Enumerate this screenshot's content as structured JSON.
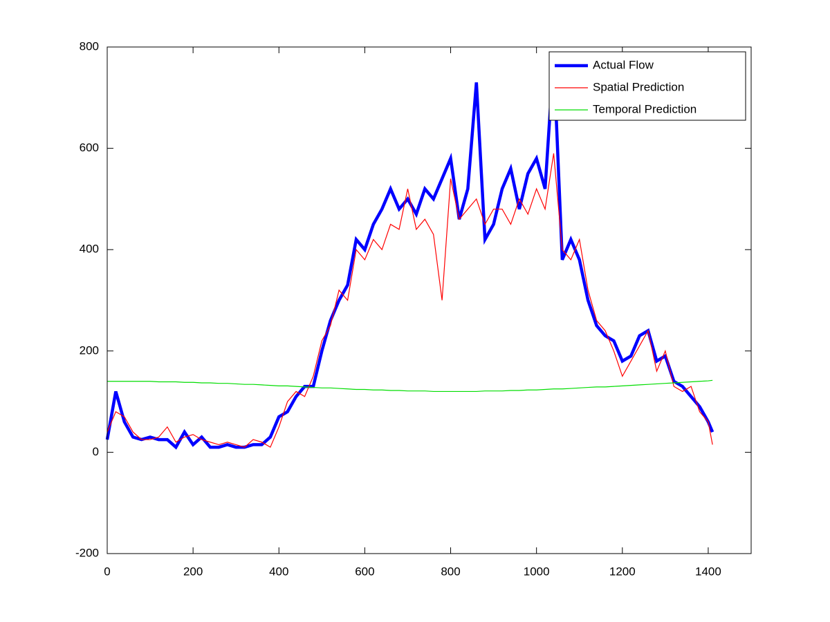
{
  "chart_data": {
    "type": "line",
    "x": [
      0,
      20,
      40,
      60,
      80,
      100,
      120,
      140,
      160,
      180,
      200,
      220,
      240,
      260,
      280,
      300,
      320,
      340,
      360,
      380,
      400,
      420,
      440,
      460,
      480,
      500,
      520,
      540,
      560,
      580,
      600,
      620,
      640,
      660,
      680,
      700,
      720,
      740,
      760,
      780,
      800,
      820,
      840,
      860,
      880,
      900,
      920,
      940,
      960,
      980,
      1000,
      1020,
      1040,
      1060,
      1080,
      1100,
      1120,
      1140,
      1160,
      1180,
      1200,
      1220,
      1240,
      1260,
      1280,
      1300,
      1320,
      1340,
      1360,
      1380,
      1400,
      1410
    ],
    "series": [
      {
        "name": "Actual Flow",
        "color": "#0000ff",
        "values": [
          25,
          120,
          60,
          30,
          25,
          30,
          25,
          25,
          10,
          40,
          15,
          30,
          10,
          10,
          15,
          10,
          10,
          15,
          15,
          30,
          70,
          80,
          110,
          130,
          130,
          200,
          260,
          300,
          330,
          420,
          400,
          450,
          480,
          520,
          480,
          500,
          470,
          520,
          500,
          540,
          580,
          460,
          520,
          730,
          420,
          450,
          520,
          560,
          480,
          550,
          580,
          520,
          780,
          380,
          420,
          380,
          300,
          250,
          230,
          220,
          180,
          190,
          230,
          240,
          180,
          190,
          140,
          130,
          110,
          90,
          60,
          40
        ]
      },
      {
        "name": "Spatial Prediction",
        "color": "#ff0000",
        "values": [
          40,
          80,
          70,
          40,
          25,
          25,
          30,
          50,
          20,
          30,
          35,
          25,
          20,
          15,
          20,
          15,
          10,
          25,
          20,
          10,
          50,
          100,
          120,
          110,
          150,
          220,
          250,
          320,
          300,
          400,
          380,
          420,
          400,
          450,
          440,
          520,
          440,
          460,
          430,
          300,
          540,
          460,
          480,
          500,
          450,
          480,
          480,
          450,
          500,
          470,
          520,
          480,
          590,
          400,
          380,
          420,
          320,
          260,
          240,
          200,
          150,
          180,
          210,
          240,
          160,
          200,
          130,
          120,
          130,
          80,
          60,
          15
        ]
      },
      {
        "name": "Temporal Prediction",
        "color": "#00dd00",
        "values": [
          140,
          140,
          140,
          140,
          140,
          140,
          139,
          139,
          139,
          138,
          138,
          137,
          137,
          136,
          136,
          135,
          134,
          134,
          133,
          132,
          131,
          131,
          130,
          129,
          128,
          127,
          127,
          126,
          125,
          124,
          124,
          123,
          123,
          122,
          122,
          121,
          121,
          121,
          120,
          120,
          120,
          120,
          120,
          120,
          121,
          121,
          121,
          122,
          122,
          123,
          123,
          124,
          125,
          125,
          126,
          127,
          128,
          129,
          129,
          130,
          131,
          132,
          133,
          134,
          135,
          136,
          137,
          138,
          139,
          140,
          141,
          142
        ]
      }
    ],
    "xlim": [
      0,
      1500
    ],
    "xticks": [
      0,
      200,
      400,
      600,
      800,
      1000,
      1200,
      1400
    ],
    "ylim": [
      -200,
      800
    ],
    "yticks": [
      -200,
      0,
      200,
      400,
      600,
      800
    ],
    "grid": false,
    "legend": "upper right"
  }
}
